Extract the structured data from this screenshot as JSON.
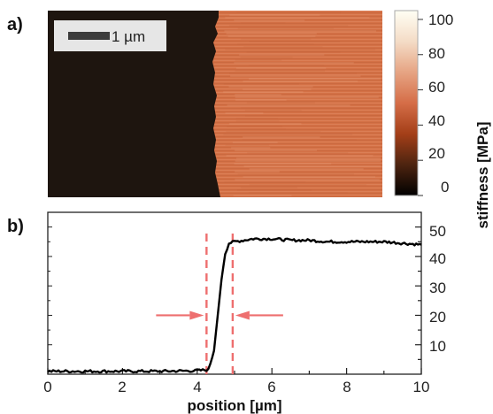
{
  "panel_a": {
    "label": "a)",
    "scalebar_label": "1 µm",
    "colorbar": {
      "ticks": [
        "100",
        "80",
        "60",
        "40",
        "20",
        "0"
      ],
      "title": "stiffness [MPa]",
      "range": [
        0,
        105
      ]
    },
    "colors": {
      "dark_region": "#1e150f",
      "bright_region": "#d7744a",
      "colormap": [
        "#000000",
        "#4d2410",
        "#a43f18",
        "#d56d47",
        "#e6a483",
        "#f4dcc6",
        "#fffff4"
      ]
    }
  },
  "panel_b": {
    "label": "b)",
    "markers": {
      "color": "#ee6f6f",
      "arrow_color": "#ee6f6f"
    }
  },
  "chart_data": {
    "type": "line",
    "title": "",
    "xlabel": "position [µm]",
    "ylabel": "stiffness [MPa]",
    "xlim": [
      0,
      10
    ],
    "ylim": [
      0,
      55
    ],
    "x_ticks": [
      "0",
      "2",
      "4",
      "6",
      "8",
      "10"
    ],
    "y_ticks": [
      "10",
      "20",
      "30",
      "40",
      "50"
    ],
    "grid": false,
    "series": [
      {
        "color": "#000000",
        "x": [
          0,
          1,
          2,
          3,
          4,
          4.3,
          4.45,
          4.55,
          4.65,
          4.75,
          4.85,
          5,
          5.5,
          6,
          6.5,
          7,
          7.5,
          8,
          8.5,
          9,
          9.5,
          10
        ],
        "y": [
          1,
          1,
          1,
          1,
          1.2,
          1.5,
          8,
          20,
          32,
          41,
          44.5,
          45,
          46,
          46,
          45.5,
          45.5,
          45,
          45,
          45,
          45,
          44.5,
          44
        ]
      }
    ],
    "annotations": [
      {
        "type": "vertical_dashed_line",
        "x": 4.25
      },
      {
        "type": "vertical_dashed_line",
        "x": 4.95
      },
      {
        "type": "arrow",
        "direction": "right",
        "points_to_x": 4.25,
        "y": 20
      },
      {
        "type": "arrow",
        "direction": "left",
        "points_to_x": 4.95,
        "y": 20
      }
    ]
  }
}
